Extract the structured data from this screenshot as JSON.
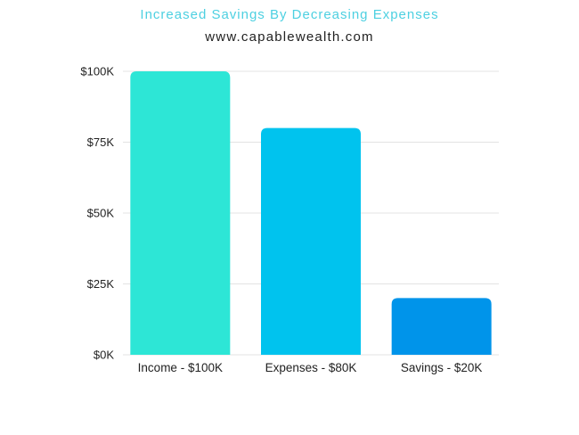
{
  "chart_data": {
    "type": "bar",
    "title": "Increased Savings By Decreasing Expenses",
    "subtitle": "www.capablewealth.com",
    "categories": [
      "Income - $100K",
      "Expenses - $80K",
      "Savings - $20K"
    ],
    "values": [
      100,
      80,
      20
    ],
    "bar_colors": [
      "#2de6d6",
      "#00c3ee",
      "#0094ea"
    ],
    "ylim": [
      0,
      100
    ],
    "yticks": [
      0,
      25,
      50,
      75,
      100
    ],
    "ytick_labels": [
      "$0K",
      "$25K",
      "$50K",
      "$75K",
      "$100K"
    ],
    "grid": true,
    "legend": "none",
    "xlabel": "",
    "ylabel": ""
  },
  "colors": {
    "title": "#4dd0e1",
    "subtitle": "#222222",
    "grid": "#e3e3e3",
    "text": "#222222"
  }
}
